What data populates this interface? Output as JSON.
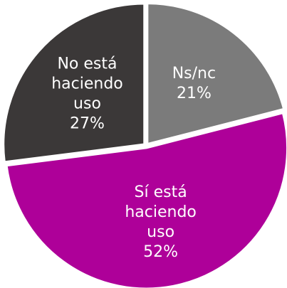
{
  "chart_data": {
    "type": "pie",
    "categories": [
      "Ns/nc",
      "Sí está haciendo uso",
      "No está haciendo uso"
    ],
    "values": [
      21,
      52,
      27
    ],
    "value_labels": [
      "21%",
      "52%",
      "27%"
    ],
    "colors": [
      "#7b7b7b",
      "#ae0099",
      "#3b3838"
    ]
  }
}
